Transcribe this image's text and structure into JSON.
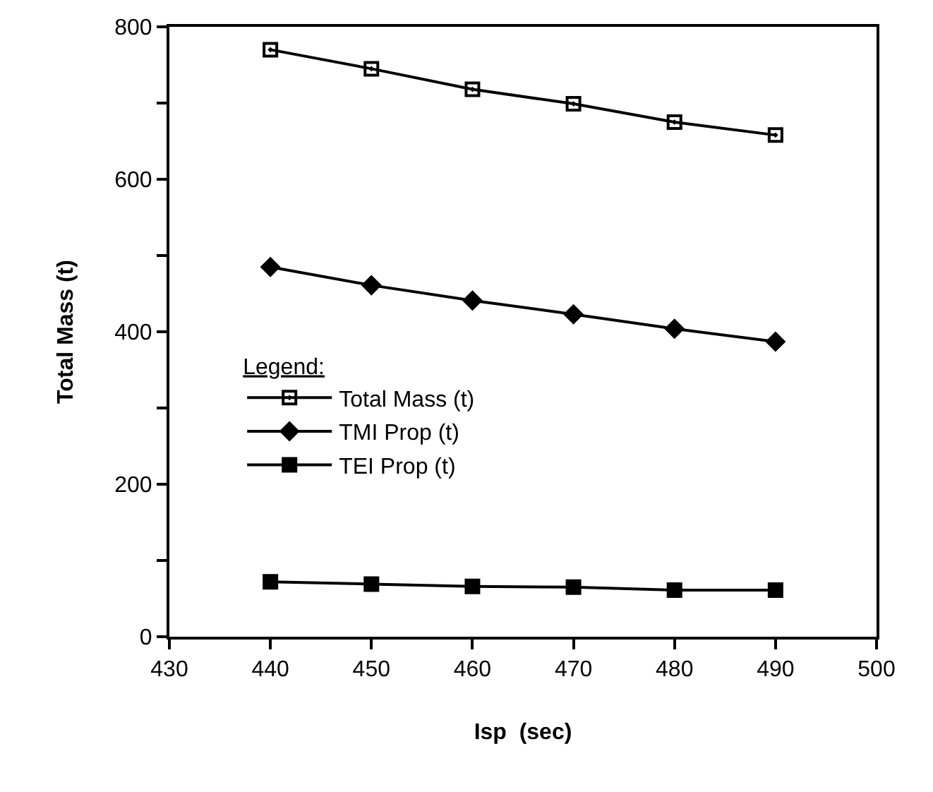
{
  "chart_data": {
    "type": "line",
    "xlabel": "Isp  (sec)",
    "ylabel": "Total Mass (t)",
    "legend_title": "Legend:",
    "x": [
      440,
      450,
      460,
      470,
      480,
      490
    ],
    "series": [
      {
        "name": "Total Mass (t)",
        "color": "#000000",
        "marker": "square-open",
        "values": [
          770,
          745,
          718,
          699,
          675,
          658
        ]
      },
      {
        "name": "TMI Prop (t)",
        "color": "#000000",
        "marker": "diamond",
        "values": [
          485,
          461,
          441,
          423,
          404,
          387
        ]
      },
      {
        "name": "TEI Prop (t)",
        "color": "#000000",
        "marker": "square",
        "values": [
          72,
          69,
          66,
          65,
          61,
          61
        ]
      }
    ],
    "xlim": [
      430,
      500
    ],
    "xticks": [
      430,
      440,
      450,
      460,
      470,
      480,
      490,
      500
    ],
    "ylim": [
      0,
      800
    ],
    "yticks": [
      0,
      {
        "value": 100,
        "label": null
      },
      200,
      {
        "value": 300,
        "label": null
      },
      400,
      {
        "value": 500,
        "label": null
      },
      600,
      {
        "value": 700,
        "label": null
      },
      800
    ],
    "legend": "left",
    "line_style": "solid"
  }
}
